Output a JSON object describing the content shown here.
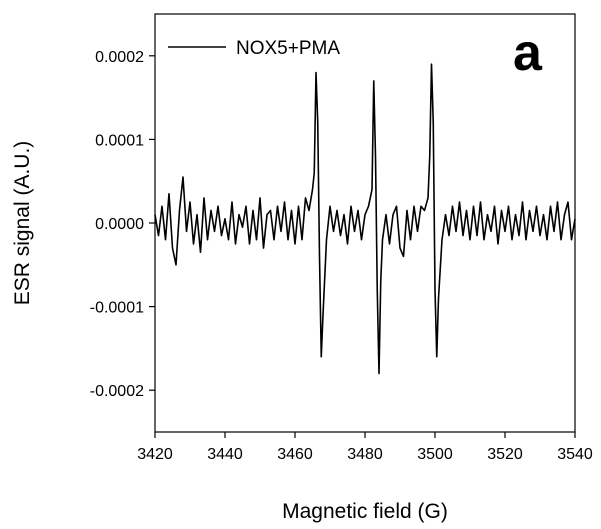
{
  "chart_data": {
    "type": "line",
    "panel_label": "a",
    "xlabel": "Magnetic field (G)",
    "ylabel": "ESR signal (A.U.)",
    "xlim": [
      3420,
      3540
    ],
    "ylim": [
      -0.00025,
      0.00025
    ],
    "x_ticks": [
      3420,
      3440,
      3460,
      3480,
      3500,
      3520,
      3540
    ],
    "x_tick_labels": [
      "3420",
      "3440",
      "3460",
      "3480",
      "3500",
      "3520",
      "3540"
    ],
    "y_ticks": [
      0.0002,
      0.0001,
      0.0,
      -0.0001,
      -0.0002
    ],
    "y_tick_labels": [
      "0.0002",
      "0.0001",
      "0.0000",
      "-0.0001",
      "-0.0002"
    ],
    "grid": false,
    "legend_position": "top-left",
    "series": [
      {
        "name": "NOX5+PMA",
        "color": "#000000",
        "x": [
          3420,
          3421,
          3422,
          3423,
          3424,
          3425,
          3426,
          3427,
          3428,
          3429,
          3430,
          3431,
          3432,
          3433,
          3434,
          3435,
          3436,
          3437,
          3438,
          3439,
          3440,
          3441,
          3442,
          3443,
          3444,
          3445,
          3446,
          3447,
          3448,
          3449,
          3450,
          3451,
          3452,
          3453,
          3454,
          3455,
          3456,
          3457,
          3458,
          3459,
          3460,
          3461,
          3462,
          3463,
          3464,
          3465,
          3465.5,
          3466,
          3466.5,
          3467,
          3467.5,
          3468,
          3469,
          3470,
          3471,
          3472,
          3473,
          3474,
          3475,
          3476,
          3477,
          3478,
          3479,
          3480,
          3481,
          3482,
          3482.5,
          3483,
          3483.5,
          3484,
          3484.5,
          3485,
          3486,
          3487,
          3488,
          3489,
          3490,
          3491,
          3492,
          3493,
          3494,
          3495,
          3496,
          3497,
          3498,
          3498.5,
          3499,
          3499.5,
          3500,
          3500.5,
          3501,
          3502,
          3503,
          3504,
          3505,
          3506,
          3507,
          3508,
          3509,
          3510,
          3511,
          3512,
          3513,
          3514,
          3515,
          3516,
          3517,
          3518,
          3519,
          3520,
          3521,
          3522,
          3523,
          3524,
          3525,
          3526,
          3527,
          3528,
          3529,
          3530,
          3531,
          3532,
          3533,
          3534,
          3535,
          3536,
          3537,
          3538,
          3539,
          3540
        ],
        "y": [
          1e-05,
          -1.5e-05,
          2e-05,
          -2e-05,
          3.5e-05,
          -3e-05,
          -5e-05,
          1.5e-05,
          5.5e-05,
          -1e-05,
          2.5e-05,
          -2.5e-05,
          1e-05,
          -3.5e-05,
          3e-05,
          -2e-05,
          1.5e-05,
          -1e-05,
          2e-05,
          -1.5e-05,
          5e-06,
          -2e-05,
          2.5e-05,
          -2.5e-05,
          1e-05,
          -5e-06,
          2e-05,
          -2.5e-05,
          1.5e-05,
          -2e-05,
          3e-05,
          -3e-05,
          1e-05,
          1.5e-05,
          -2e-05,
          2e-05,
          -1e-05,
          2.5e-05,
          -2e-05,
          1.5e-05,
          -2.5e-05,
          2e-05,
          -2e-05,
          3e-05,
          1.5e-05,
          4e-05,
          6e-05,
          0.00018,
          0.00012,
          -4e-05,
          -0.00016,
          -0.00011,
          -2e-05,
          2e-05,
          -1e-05,
          1.5e-05,
          -1.5e-05,
          1e-05,
          -2.5e-05,
          2e-05,
          -1e-05,
          1.5e-05,
          -2e-05,
          1e-05,
          2e-05,
          4e-05,
          0.00017,
          8e-05,
          -8e-05,
          -0.00018,
          -7e-05,
          -2e-05,
          1e-05,
          -2.5e-05,
          1e-05,
          2e-05,
          -3e-05,
          -4e-05,
          1.5e-05,
          -2e-05,
          2e-05,
          -1e-05,
          2e-05,
          1.5e-05,
          3e-05,
          8e-05,
          0.00019,
          0.00012,
          -8e-05,
          -0.00016,
          -9e-05,
          -2e-05,
          1e-05,
          -1.5e-05,
          2e-05,
          -1e-05,
          2.5e-05,
          -1.5e-05,
          1.5e-05,
          -2e-05,
          2e-05,
          -1.5e-05,
          2.5e-05,
          -2e-05,
          1e-05,
          -1e-05,
          2e-05,
          -2.5e-05,
          1.5e-05,
          -1e-05,
          2e-05,
          -2e-05,
          1e-05,
          -1.5e-05,
          2.5e-05,
          -2e-05,
          1.5e-05,
          -1e-05,
          2e-05,
          -1.5e-05,
          1e-05,
          -2e-05,
          2e-05,
          -1e-05,
          2.5e-05,
          -2e-05,
          1e-05,
          2.5e-05,
          -2e-05,
          5e-06
        ]
      }
    ]
  }
}
